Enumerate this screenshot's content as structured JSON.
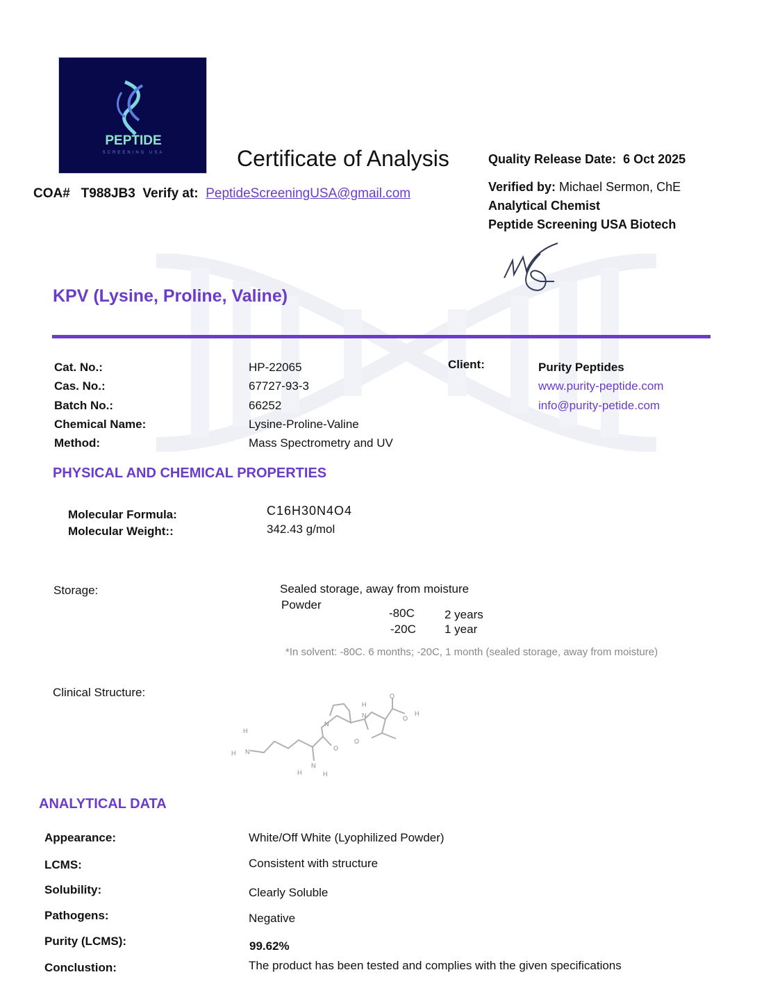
{
  "logo": {
    "brand": "PEPTIDE",
    "sub": "SCREENING USA"
  },
  "header": {
    "title": "Certificate of Analysis",
    "coa_label": "COA#",
    "coa_number": "T988JB3",
    "verify_label": "Verify at:",
    "verify_email": "PeptideScreeningUSA@gmail.com",
    "release_label": "Quality Release Date:",
    "release_date": "6 Oct 2025",
    "verified_label": "Verified by:",
    "verified_name": "Michael Sermon, ChE",
    "role": "Analytical Chemist",
    "company": "Peptide Screening USA Biotech"
  },
  "product": {
    "name": "KPV (Lysine, Proline, Valine)"
  },
  "details": [
    {
      "label": "Cat. No.:",
      "value": "HP-22065"
    },
    {
      "label": "Cas. No.:",
      "value": "67727-93-3"
    },
    {
      "label": "Batch No.:",
      "value": "66252"
    },
    {
      "label": "Chemical Name:",
      "value": "Lysine-Proline-Valine"
    },
    {
      "label": "Method:",
      "value": "Mass Spectrometry and UV"
    }
  ],
  "client": {
    "label": "Client:",
    "name": "Purity Peptides",
    "website": "www.purity-peptide.com",
    "email": "info@purity-petide.com"
  },
  "properties": {
    "heading": "PHYSICAL AND CHEMICAL PROPERTIES",
    "formula_label": "Molecular Formula:",
    "formula": "C16H30N4O4",
    "weight_label": "Molecular Weight::",
    "weight": "342.43 g/mol"
  },
  "storage": {
    "label": "Storage:",
    "line1": "Sealed storage, away from moisture",
    "form": "Powder",
    "rows": [
      {
        "temp": "-80C",
        "duration": "2 years"
      },
      {
        "temp": "-20C",
        "duration": "1 year"
      }
    ],
    "note": "*In solvent: -80C. 6 months; -20C, 1 month (sealed storage, away from moisture)"
  },
  "structure": {
    "label": "Clinical Structure:"
  },
  "analytical": {
    "heading": "ANALYTICAL DATA",
    "rows": [
      {
        "label": "Appearance:",
        "value": "White/Off White (Lyophilized Powder)"
      },
      {
        "label": "LCMS:",
        "value": "Consistent with structure"
      },
      {
        "label": "Solubility:",
        "value": "Clearly Soluble"
      },
      {
        "label": "Pathogens:",
        "value": "Negative"
      },
      {
        "label": "Purity (LCMS):",
        "value": "99.62%"
      },
      {
        "label": "Conclustion:",
        "value": "The product has been tested and complies with the given specifications"
      }
    ]
  },
  "colors": {
    "accent": "#6a3cc9",
    "logo_bg": "#07094a"
  }
}
